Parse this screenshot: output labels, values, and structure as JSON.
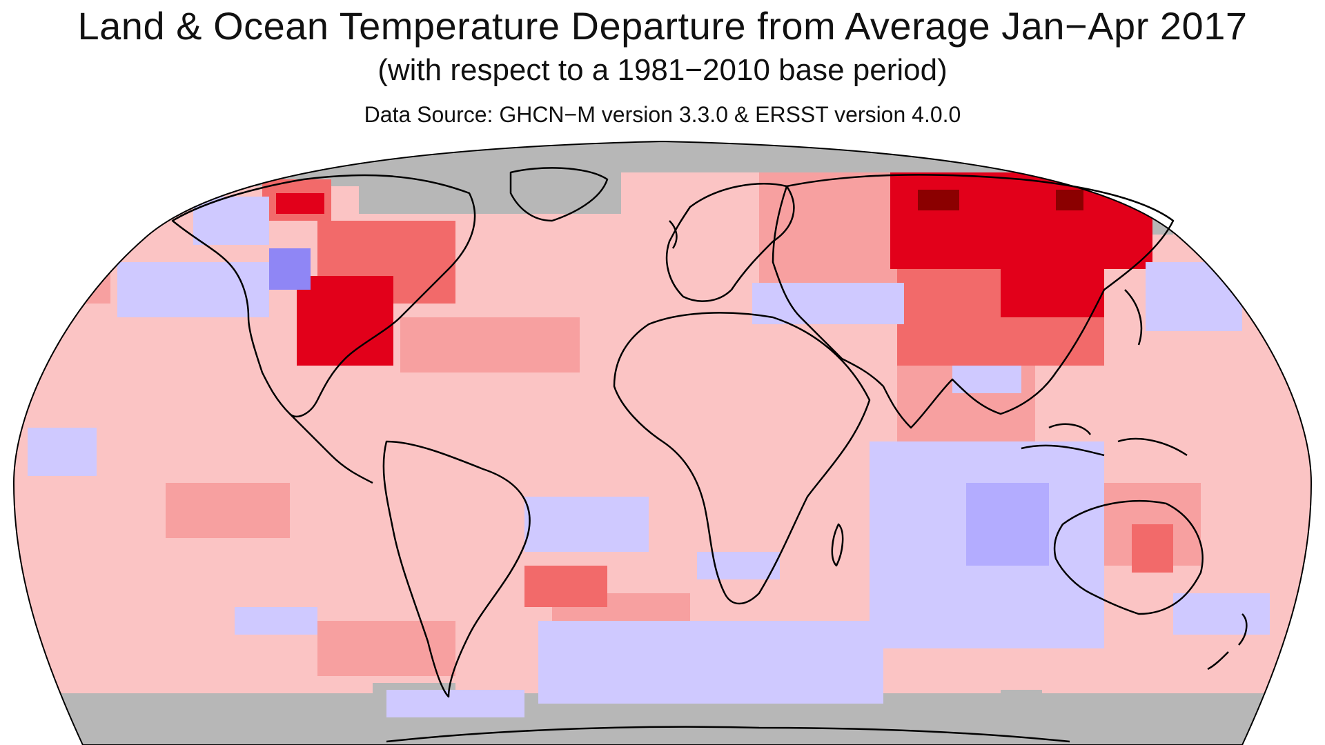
{
  "header": {
    "title": "Land & Ocean Temperature Departure from Average Jan−Apr 2017",
    "subtitle": "(with respect to a 1981−2010 base period)",
    "source": "Data Source: GHCN−M version 3.3.0 & ERSST version 4.0.0"
  },
  "map": {
    "projection": "Robinson",
    "colors": {
      "missing": "#b7b7b7",
      "much_warmer": "#8b0000",
      "warmer_strong": "#e2001a",
      "warmer_moderate": "#f26a6a",
      "warmer_light": "#f7a0a0",
      "warmer_slight": "#fbc4c4",
      "cooler_slight": "#cfc9ff",
      "cooler_light": "#b3acff",
      "cooler_moderate": "#8f86f5",
      "coastline": "#000000",
      "border": "#333333"
    }
  }
}
